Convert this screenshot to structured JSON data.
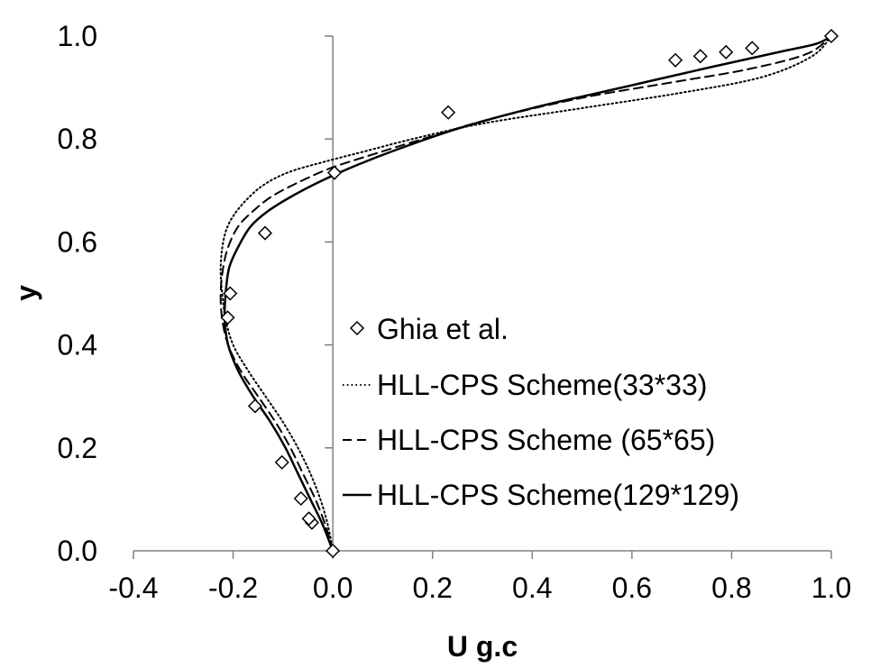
{
  "chart_data": {
    "type": "line",
    "title": "",
    "xlabel": "U g.c",
    "ylabel": "y",
    "xlim": [
      -0.4,
      1.0
    ],
    "ylim": [
      0.0,
      1.0
    ],
    "xticks": [
      "-0.4",
      "-0.2",
      "0.0",
      "0.2",
      "0.4",
      "0.6",
      "0.8",
      "1.0"
    ],
    "yticks": [
      "0.0",
      "0.2",
      "0.4",
      "0.6",
      "0.8",
      "1.0"
    ],
    "grid": false,
    "legend_position": "center-right",
    "series": [
      {
        "name": "Ghia et al.",
        "style": "markers",
        "marker": "diamond",
        "x": [
          0.0,
          -0.042,
          -0.048,
          -0.064,
          -0.102,
          -0.156,
          -0.211,
          -0.206,
          -0.136,
          0.0033,
          0.2315,
          0.6872,
          0.7372,
          0.7887,
          0.8412,
          1.0
        ],
        "y": [
          0.0,
          0.0547,
          0.0625,
          0.1016,
          0.1719,
          0.2813,
          0.4531,
          0.5,
          0.6172,
          0.7344,
          0.8516,
          0.9531,
          0.9609,
          0.9688,
          0.9766,
          1.0
        ]
      },
      {
        "name": "HLL-CPS Scheme(33*33)",
        "style": "dotted",
        "x": [
          0.0,
          -0.01,
          -0.025,
          -0.045,
          -0.07,
          -0.1,
          -0.135,
          -0.17,
          -0.2,
          -0.215,
          -0.222,
          -0.225,
          -0.223,
          -0.215,
          -0.2,
          -0.175,
          -0.14,
          -0.09,
          -0.02,
          0.06,
          0.16,
          0.3,
          0.5,
          0.7,
          0.86,
          0.96,
          1.0
        ],
        "y": [
          0.0,
          0.05,
          0.1,
          0.15,
          0.2,
          0.25,
          0.3,
          0.35,
          0.4,
          0.45,
          0.5,
          0.54,
          0.58,
          0.62,
          0.65,
          0.68,
          0.71,
          0.735,
          0.755,
          0.775,
          0.8,
          0.83,
          0.86,
          0.89,
          0.92,
          0.96,
          1.0
        ]
      },
      {
        "name": "HLL-CPS Scheme (65*65)",
        "style": "dashed",
        "x": [
          0.0,
          -0.015,
          -0.035,
          -0.06,
          -0.085,
          -0.115,
          -0.15,
          -0.185,
          -0.21,
          -0.222,
          -0.225,
          -0.22,
          -0.21,
          -0.19,
          -0.16,
          -0.12,
          -0.06,
          0.0,
          0.08,
          0.18,
          0.32,
          0.5,
          0.68,
          0.83,
          0.95,
          1.0
        ],
        "y": [
          0.0,
          0.05,
          0.1,
          0.15,
          0.2,
          0.25,
          0.3,
          0.35,
          0.4,
          0.45,
          0.5,
          0.55,
          0.59,
          0.63,
          0.66,
          0.69,
          0.72,
          0.745,
          0.77,
          0.8,
          0.84,
          0.88,
          0.91,
          0.935,
          0.965,
          1.0
        ]
      },
      {
        "name": "HLL-CPS Scheme(129*129)",
        "style": "solid",
        "x": [
          0.0,
          -0.02,
          -0.045,
          -0.07,
          -0.095,
          -0.125,
          -0.16,
          -0.19,
          -0.21,
          -0.217,
          -0.215,
          -0.208,
          -0.19,
          -0.165,
          -0.13,
          -0.08,
          -0.02,
          0.05,
          0.13,
          0.25,
          0.4,
          0.58,
          0.76,
          0.9,
          0.97,
          1.0
        ],
        "y": [
          0.0,
          0.05,
          0.1,
          0.15,
          0.2,
          0.25,
          0.3,
          0.35,
          0.4,
          0.45,
          0.5,
          0.55,
          0.59,
          0.63,
          0.66,
          0.69,
          0.72,
          0.75,
          0.78,
          0.82,
          0.86,
          0.9,
          0.94,
          0.97,
          0.985,
          1.0
        ]
      }
    ]
  }
}
